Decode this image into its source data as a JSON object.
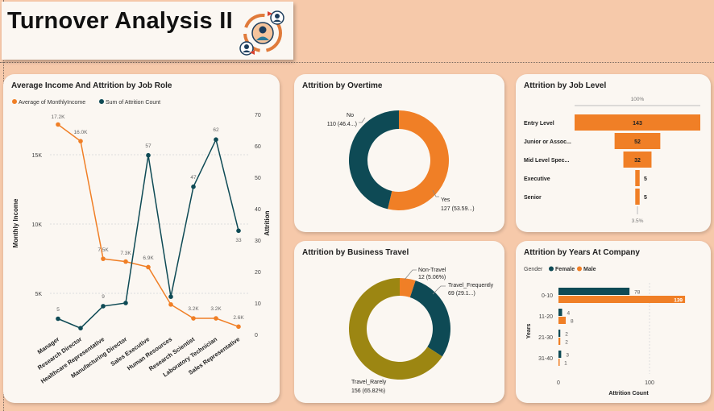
{
  "header": {
    "title": "Turnover Analysis II"
  },
  "colors": {
    "orange": "#f07f26",
    "teal": "#0e4a55",
    "olive": "#9c8612",
    "background": "#f6c9aa",
    "card": "#fbf7f2"
  },
  "income_chart": {
    "title": "Average Income And Attrition by Job Role",
    "legend": {
      "series1": "Average of MonthlyIncome",
      "series2": "Sum of Attrition Count"
    },
    "ylabel_left": "Monthly Income",
    "ylabel_right": "Attrition",
    "left_ticks": [
      "15K",
      "10K",
      "5K"
    ],
    "right_ticks": [
      "70",
      "60",
      "50",
      "40",
      "30",
      "20",
      "10",
      "0"
    ],
    "income_labels": [
      "17.2K",
      "16.0K",
      "7.5K",
      "7.3K",
      "6.9K",
      "3.2K",
      "3.2K",
      "2.6K"
    ],
    "attrition_labels": [
      "5",
      "9",
      "57",
      "47",
      "62",
      "33"
    ]
  },
  "overtime_chart": {
    "title": "Attrition by Overtime",
    "no_label": "No",
    "no_value": "110 (46.4...)",
    "yes_label": "Yes",
    "yes_value": "127 (53.59...)"
  },
  "joblevel_chart": {
    "title": "Attrition by Job Level",
    "top_pct": "100%",
    "bottom_pct": "3.5%",
    "levels": [
      "Entry Level",
      "Junior or Assoc...",
      "Mid Level Spec...",
      "Executive",
      "Senior"
    ],
    "values": [
      "143",
      "52",
      "32",
      "5",
      "5"
    ]
  },
  "travel_chart": {
    "title": "Attrition by Business Travel",
    "nontravel_label": "Non-Travel",
    "nontravel_value": "12 (5.06%)",
    "frequent_label": "Travel_Frequently",
    "frequent_value": "69 (29.1...)",
    "rarely_label": "Travel_Rarely",
    "rarely_value": "156 (65.82%)"
  },
  "years_chart": {
    "title": "Attrition by Years At Company",
    "legend_title": "Gender",
    "legend_female": "Female",
    "legend_male": "Male",
    "ylabel": "Years",
    "xlabel": "Attrition Count",
    "x_ticks": [
      "0",
      "100"
    ],
    "categories": [
      "0-10",
      "11-20",
      "21-30",
      "31-40"
    ],
    "female_labels": [
      "78",
      "4",
      "2",
      "3"
    ],
    "male_labels": [
      "139",
      "8",
      "2",
      "1"
    ]
  },
  "chart_data": [
    {
      "type": "line",
      "title": "Average Income And Attrition by Job Role",
      "categories": [
        "Manager",
        "Research Director",
        "Healthcare Representative",
        "Manufacturing Director",
        "Sales Executive",
        "Human Resources",
        "Research Scientist",
        "Laboratory Technician",
        "Sales Representative"
      ],
      "series": [
        {
          "name": "Average of MonthlyIncome",
          "axis": "left",
          "values": [
            17200,
            16000,
            7500,
            7300,
            6900,
            4200,
            3200,
            3200,
            2600
          ]
        },
        {
          "name": "Sum of Attrition Count",
          "axis": "right",
          "values": [
            5,
            2,
            9,
            10,
            57,
            12,
            47,
            62,
            33
          ]
        }
      ],
      "ylabel": "Monthly Income",
      "y2label": "Attrition",
      "ylim": [
        0,
        20000
      ],
      "y2lim": [
        0,
        70
      ],
      "legend": "top-left"
    },
    {
      "type": "pie",
      "title": "Attrition by Overtime",
      "categories": [
        "No",
        "Yes"
      ],
      "values": [
        110,
        127
      ],
      "percent": [
        46.4,
        53.59
      ]
    },
    {
      "type": "bar",
      "title": "Attrition by Job Level",
      "categories": [
        "Entry Level",
        "Junior or Assoc...",
        "Mid Level Spec...",
        "Executive",
        "Senior"
      ],
      "values": [
        143,
        52,
        32,
        5,
        5
      ]
    },
    {
      "type": "pie",
      "title": "Attrition by Business Travel",
      "categories": [
        "Non-Travel",
        "Travel_Frequently",
        "Travel_Rarely"
      ],
      "values": [
        12,
        69,
        156
      ],
      "percent": [
        5.06,
        29.1,
        65.82
      ]
    },
    {
      "type": "bar",
      "title": "Attrition by Years At Company",
      "categories": [
        "0-10",
        "11-20",
        "21-30",
        "31-40"
      ],
      "series": [
        {
          "name": "Female",
          "values": [
            78,
            4,
            2,
            3
          ]
        },
        {
          "name": "Male",
          "values": [
            139,
            8,
            2,
            1
          ]
        }
      ],
      "xlabel": "Attrition Count",
      "ylabel": "Years",
      "legend": "top-left"
    }
  ]
}
